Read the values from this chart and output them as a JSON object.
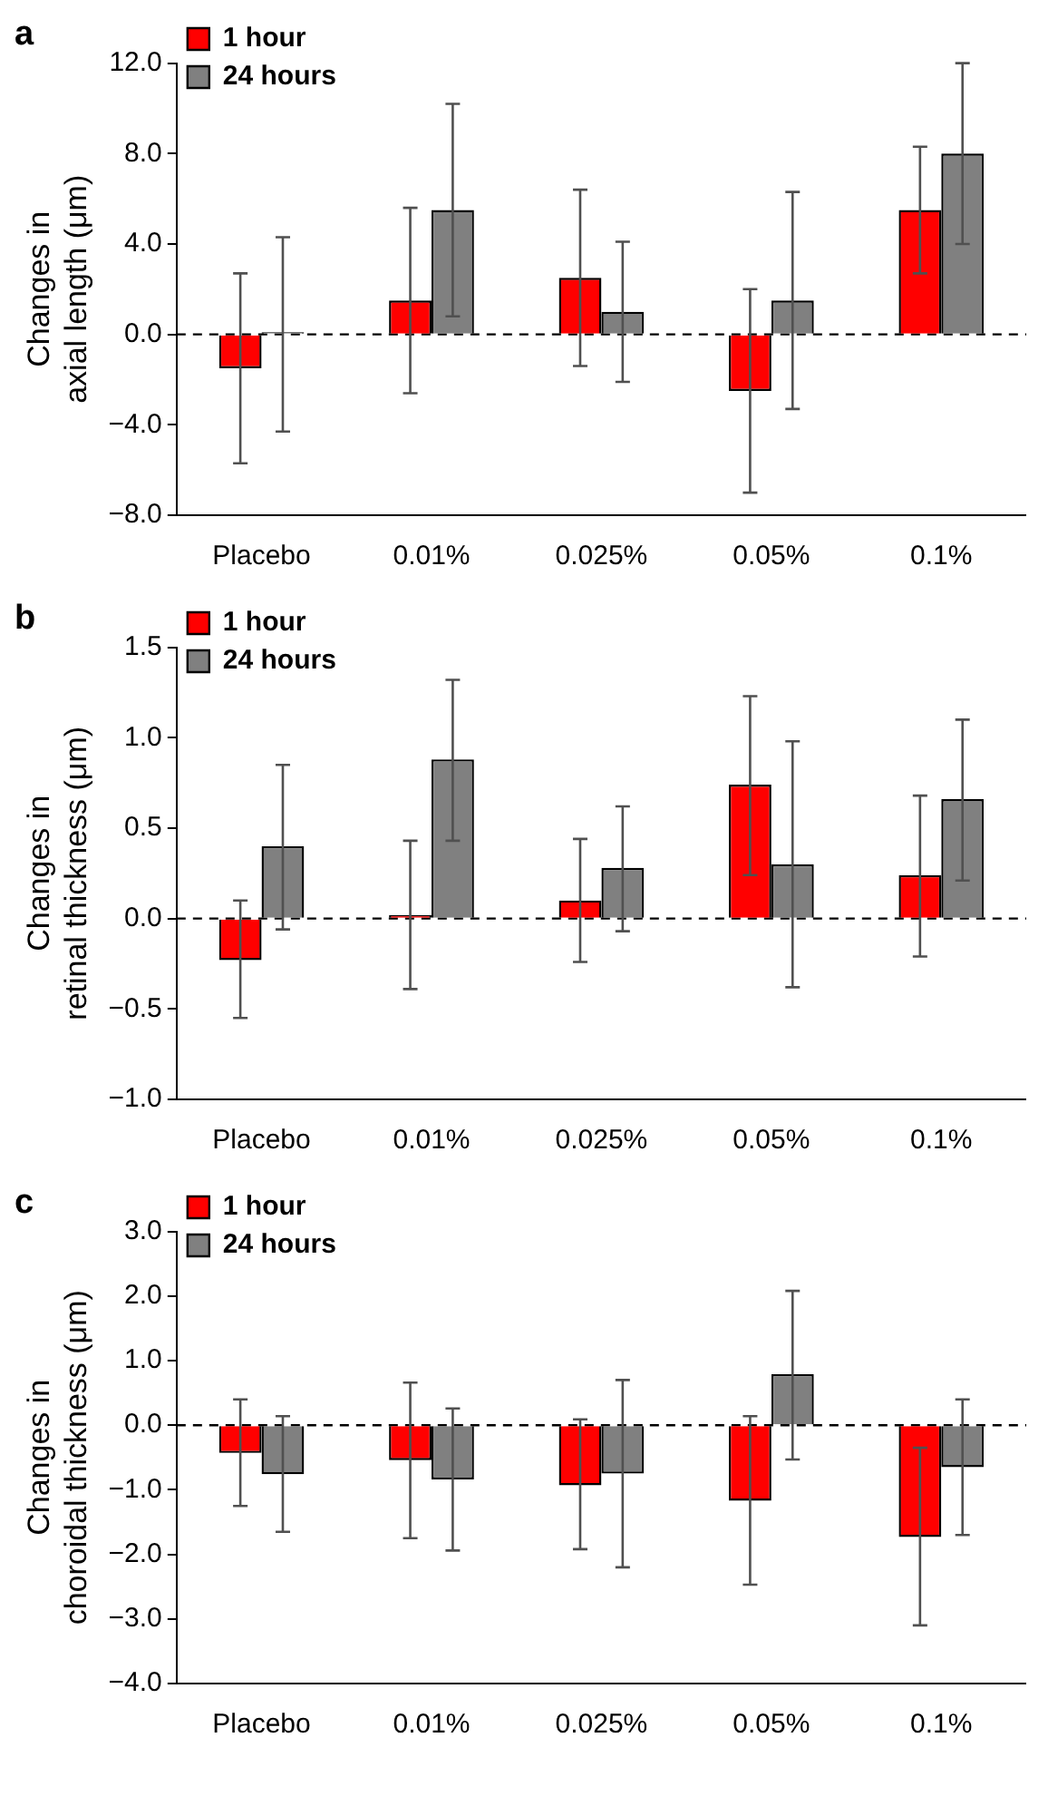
{
  "chart_data": [
    {
      "type": "bar",
      "title": "a",
      "ylabel": "Changes in\naxial length (μm)",
      "categories": [
        "Placebo",
        "0.01%",
        "0.025%",
        "0.05%",
        "0.1%"
      ],
      "series": [
        {
          "name": "1 hour",
          "color": "#ff0000",
          "values": [
            -1.5,
            1.5,
            2.5,
            -2.5,
            5.5
          ],
          "errors": [
            [
              -5.7,
              2.7
            ],
            [
              -2.6,
              5.6
            ],
            [
              -1.4,
              6.4
            ],
            [
              -7.0,
              2.0
            ],
            [
              2.7,
              8.3
            ]
          ]
        },
        {
          "name": "24 hours",
          "color": "#808080",
          "values": [
            0.1,
            5.5,
            1.0,
            1.5,
            8.0
          ],
          "errors": [
            [
              -4.3,
              4.3
            ],
            [
              0.8,
              10.2
            ],
            [
              -2.1,
              4.1
            ],
            [
              -3.3,
              6.3
            ],
            [
              4.0,
              12.0
            ]
          ]
        }
      ],
      "ylim": [
        -8,
        12
      ],
      "yticks": [
        {
          "value": -8,
          "label": "−8.0"
        },
        {
          "value": -4,
          "label": "−4.0"
        },
        {
          "value": 0,
          "label": "0.0"
        },
        {
          "value": 4,
          "label": "4.0"
        },
        {
          "value": 8,
          "label": "8.0"
        },
        {
          "value": 12,
          "label": "12.0"
        }
      ],
      "ref_lines": [
        {
          "axis": "y",
          "value": 0,
          "color": "#000000",
          "line_style": "dashed"
        }
      ],
      "legend": "top left"
    },
    {
      "type": "bar",
      "title": "b",
      "ylabel": "Changes in\nretinal thickness (μm)",
      "categories": [
        "Placebo",
        "0.01%",
        "0.025%",
        "0.05%",
        "0.1%"
      ],
      "series": [
        {
          "name": "1 hour",
          "color": "#ff0000",
          "values": [
            -0.23,
            0.02,
            0.1,
            0.74,
            0.24
          ],
          "errors": [
            [
              -0.55,
              0.1
            ],
            [
              -0.39,
              0.43
            ],
            [
              -0.24,
              0.44
            ],
            [
              0.24,
              1.23
            ],
            [
              -0.21,
              0.68
            ]
          ]
        },
        {
          "name": "24 hours",
          "color": "#808080",
          "values": [
            0.4,
            0.88,
            0.28,
            0.3,
            0.66
          ],
          "errors": [
            [
              -0.06,
              0.85
            ],
            [
              0.43,
              1.32
            ],
            [
              -0.07,
              0.62
            ],
            [
              -0.38,
              0.98
            ],
            [
              0.21,
              1.1
            ]
          ]
        }
      ],
      "ylim": [
        -1,
        1.5
      ],
      "yticks": [
        {
          "value": -1,
          "label": "−1.0"
        },
        {
          "value": -0.5,
          "label": "−0.5"
        },
        {
          "value": 0,
          "label": "0.0"
        },
        {
          "value": 0.5,
          "label": "0.5"
        },
        {
          "value": 1,
          "label": "1.0"
        },
        {
          "value": 1.5,
          "label": "1.5"
        }
      ],
      "ref_lines": [
        {
          "axis": "y",
          "value": 0,
          "color": "#000000",
          "line_style": "dashed"
        }
      ],
      "legend": "top left"
    },
    {
      "type": "bar",
      "title": "c",
      "ylabel": "Changes in\nchoroidal thickness (μm)",
      "categories": [
        "Placebo",
        "0.01%",
        "0.025%",
        "0.05%",
        "0.1%"
      ],
      "series": [
        {
          "name": "1 hour",
          "color": "#ff0000",
          "values": [
            -0.43,
            -0.54,
            -0.93,
            -1.17,
            -1.73
          ],
          "errors": [
            [
              -1.25,
              0.4
            ],
            [
              -1.75,
              0.66
            ],
            [
              -1.92,
              0.09
            ],
            [
              -2.47,
              0.14
            ],
            [
              -3.1,
              -0.35
            ]
          ]
        },
        {
          "name": "24 hours",
          "color": "#808080",
          "values": [
            -0.76,
            -0.84,
            -0.75,
            0.79,
            -0.65
          ],
          "errors": [
            [
              -1.65,
              0.14
            ],
            [
              -1.94,
              0.26
            ],
            [
              -2.2,
              0.7
            ],
            [
              -0.53,
              2.08
            ],
            [
              -1.7,
              0.4
            ]
          ]
        }
      ],
      "ylim": [
        -4,
        3
      ],
      "yticks": [
        {
          "value": -4,
          "label": "−4.0"
        },
        {
          "value": -3,
          "label": "−3.0"
        },
        {
          "value": -2,
          "label": "−2.0"
        },
        {
          "value": -1,
          "label": "−1.0"
        },
        {
          "value": 0,
          "label": "0.0"
        },
        {
          "value": 1,
          "label": "1.0"
        },
        {
          "value": 2,
          "label": "2.0"
        },
        {
          "value": 3,
          "label": "3.0"
        }
      ],
      "ref_lines": [
        {
          "axis": "y",
          "value": 0,
          "color": "#000000",
          "line_style": "dashed"
        }
      ],
      "legend": "top left"
    }
  ]
}
